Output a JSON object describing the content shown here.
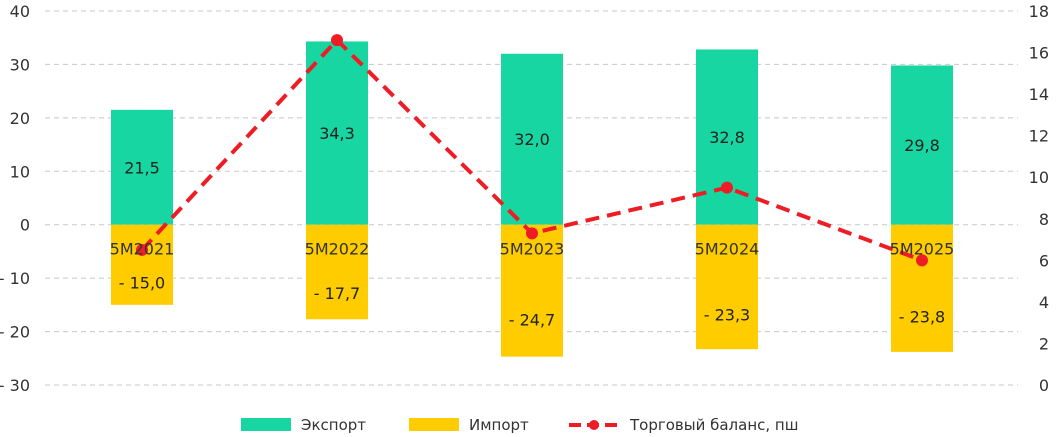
{
  "chart_data": {
    "type": "bar",
    "categories": [
      "5М2021",
      "5М2022",
      "5М2023",
      "5М2024",
      "5М2025"
    ],
    "series": [
      {
        "name": "Экспорт",
        "type": "bar",
        "axis": "left",
        "color": "#17D6A2",
        "values": [
          21.5,
          34.3,
          32.0,
          32.8,
          29.8
        ],
        "labels": [
          "21,5",
          "34,3",
          "32,0",
          "32,8",
          "29,8"
        ]
      },
      {
        "name": "Импорт",
        "type": "bar",
        "axis": "left",
        "color": "#FFCC00",
        "values": [
          -15.0,
          -17.7,
          -24.7,
          -23.3,
          -23.8
        ],
        "labels": [
          "- 15,0",
          "- 17,7",
          "- 24,7",
          "- 23,3",
          "- 23,8"
        ]
      },
      {
        "name": "Торговый баланс, пш",
        "type": "line",
        "axis": "right",
        "color": "#EE1C25",
        "values": [
          6.5,
          16.6,
          7.3,
          9.5,
          6.0
        ]
      }
    ],
    "ylim_left": [
      -30,
      40
    ],
    "yticks_left": [
      "- 30",
      "- 20",
      "- 10",
      "0",
      "10",
      "20",
      "30",
      "40"
    ],
    "yticks_left_values": [
      -30,
      -20,
      -10,
      0,
      10,
      20,
      30,
      40
    ],
    "ylim_right": [
      0,
      18
    ],
    "yticks_right": [
      "0",
      "2",
      "4",
      "6",
      "8",
      "10",
      "12",
      "14",
      "16",
      "18"
    ],
    "yticks_right_values": [
      0,
      2,
      4,
      6,
      8,
      10,
      12,
      14,
      16,
      18
    ],
    "grid": "horizontal-dashed",
    "legend": "bottom-center"
  }
}
